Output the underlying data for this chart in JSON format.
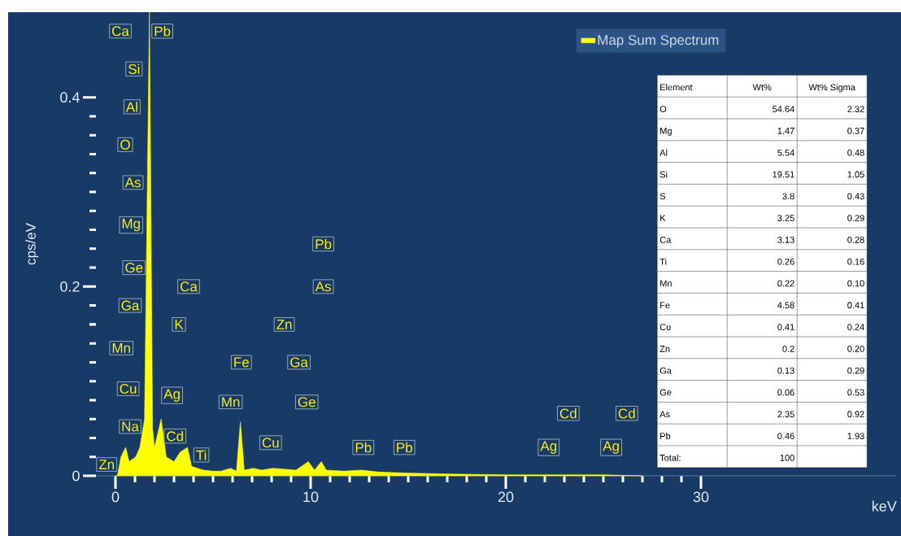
{
  "chart_data": {
    "type": "area",
    "xlabel": "keV",
    "ylabel": "cps/eV",
    "x": [
      0,
      0.1,
      0.28,
      0.52,
      0.7,
      1.04,
      1.25,
      1.49,
      1.74,
      1.9,
      2.0,
      2.34,
      2.6,
      3.0,
      3.31,
      3.69,
      3.9,
      4.2,
      4.51,
      5.0,
      5.41,
      5.9,
      6.2,
      6.4,
      6.6,
      7.06,
      7.5,
      8.04,
      8.63,
      9.25,
      9.88,
      10.2,
      10.55,
      10.8,
      11.7,
      12.6,
      13.5,
      14.8,
      17,
      20,
      22,
      25,
      27
    ],
    "series": [
      {
        "name": "Map Sum Spectrum",
        "color": "#ffff00",
        "values": [
          0,
          0,
          0.02,
          0.03,
          0.015,
          0.02,
          0.03,
          0.06,
          0.49,
          0.05,
          0.03,
          0.06,
          0.02,
          0.015,
          0.025,
          0.03,
          0.01,
          0.008,
          0.006,
          0.005,
          0.005,
          0.008,
          0.005,
          0.057,
          0.006,
          0.008,
          0.006,
          0.008,
          0.007,
          0.006,
          0.015,
          0.006,
          0.015,
          0.006,
          0.005,
          0.006,
          0.004,
          0.003,
          0.002,
          0.001,
          0.001,
          0.001,
          0
        ]
      }
    ],
    "xlim": [
      -1,
      40
    ],
    "ylim": [
      0,
      0.49
    ],
    "xticks": [
      0,
      10,
      20,
      30
    ],
    "yticks": [
      0,
      0.2,
      0.4
    ],
    "legend": "top right",
    "annotations": [
      {
        "text": "Ca",
        "x": 0.25,
        "y": 0.47
      },
      {
        "text": "Pb",
        "x": 2.4,
        "y": 0.47
      },
      {
        "text": "Si",
        "x": 0.95,
        "y": 0.43
      },
      {
        "text": "Al",
        "x": 0.85,
        "y": 0.39
      },
      {
        "text": "O",
        "x": 0.5,
        "y": 0.35
      },
      {
        "text": "As",
        "x": 0.9,
        "y": 0.31
      },
      {
        "text": "Mg",
        "x": 0.8,
        "y": 0.265
      },
      {
        "text": "Ge",
        "x": 0.95,
        "y": 0.22
      },
      {
        "text": "Ga",
        "x": 0.75,
        "y": 0.18
      },
      {
        "text": "Mn",
        "x": 0.3,
        "y": 0.135
      },
      {
        "text": "Cu",
        "x": 0.65,
        "y": 0.092
      },
      {
        "text": "Na",
        "x": 0.75,
        "y": 0.052
      },
      {
        "text": "Zn",
        "x": -0.45,
        "y": 0.012
      },
      {
        "text": "Ca",
        "x": 3.75,
        "y": 0.2
      },
      {
        "text": "K",
        "x": 3.25,
        "y": 0.16
      },
      {
        "text": "Ag",
        "x": 2.9,
        "y": 0.085
      },
      {
        "text": "Cd",
        "x": 3.05,
        "y": 0.042
      },
      {
        "text": "Ti",
        "x": 4.4,
        "y": 0.022
      },
      {
        "text": "Fe",
        "x": 6.45,
        "y": 0.12
      },
      {
        "text": "Mn",
        "x": 5.9,
        "y": 0.078
      },
      {
        "text": "Zn",
        "x": 8.65,
        "y": 0.16
      },
      {
        "text": "Ga",
        "x": 9.4,
        "y": 0.12
      },
      {
        "text": "Ge",
        "x": 9.8,
        "y": 0.078
      },
      {
        "text": "Cu",
        "x": 7.95,
        "y": 0.035
      },
      {
        "text": "Pb",
        "x": 10.65,
        "y": 0.245
      },
      {
        "text": "As",
        "x": 10.65,
        "y": 0.2
      },
      {
        "text": "Pb",
        "x": 12.7,
        "y": 0.03
      },
      {
        "text": "Pb",
        "x": 14.8,
        "y": 0.03
      },
      {
        "text": "Ag",
        "x": 22.2,
        "y": 0.03
      },
      {
        "text": "Cd",
        "x": 23.2,
        "y": 0.066
      },
      {
        "text": "Ag",
        "x": 25.4,
        "y": 0.03
      },
      {
        "text": "Cd",
        "x": 26.2,
        "y": 0.066
      },
      "Element",
      "Wt%",
      "Wt% Sigma",
      "O",
      "54.64",
      "2.32",
      "Mg",
      "1.47",
      "0.37",
      "Al",
      "5.54",
      "0.48",
      "Si",
      "19.51",
      "1.05",
      "S",
      "3.8",
      "0.43",
      "K",
      "3.25",
      "0.29",
      "Ca",
      "3.13",
      "0.28",
      "Ti",
      "0.26",
      "0.16",
      "Mn",
      "0.22",
      "0.10",
      "Fe",
      "4.58",
      "0.41",
      "Cu",
      "0.41",
      "0.24",
      "Zn",
      "0.2",
      "0.20",
      "Ga",
      "0.13",
      "0.29",
      "Ge",
      "0.06",
      "0.53",
      "As",
      "2.35",
      "0.92",
      "Pb",
      "0.46",
      "1.93",
      "Total:",
      "100"
    ]
  }
}
